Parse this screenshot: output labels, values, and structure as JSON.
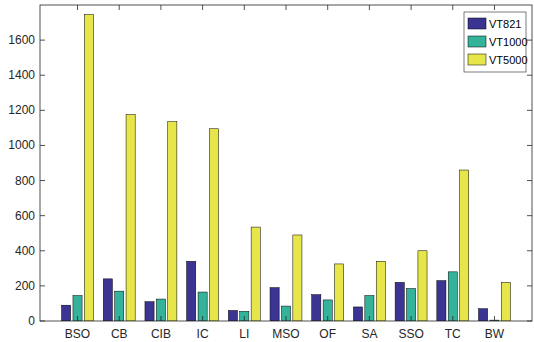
{
  "chart_data": {
    "type": "bar",
    "categories": [
      "BSO",
      "CB",
      "CIB",
      "IC",
      "LI",
      "MSO",
      "OF",
      "SA",
      "SSO",
      "TC",
      "BW"
    ],
    "series": [
      {
        "name": "VT821",
        "color": "#3b3493",
        "values": [
          90,
          240,
          110,
          340,
          60,
          190,
          150,
          80,
          220,
          230,
          70
        ]
      },
      {
        "name": "VT1000",
        "color": "#35b39a",
        "values": [
          145,
          170,
          125,
          165,
          55,
          85,
          120,
          145,
          185,
          280,
          5
        ]
      },
      {
        "name": "VT5000",
        "color": "#e6e64b",
        "values": [
          1745,
          1175,
          1135,
          1095,
          535,
          490,
          325,
          340,
          400,
          860,
          220
        ]
      }
    ],
    "ylim": [
      0,
      1800
    ],
    "yticks": [
      0,
      200,
      400,
      600,
      800,
      1000,
      1200,
      1400,
      1600
    ],
    "grid": false,
    "legend": "northeast"
  }
}
